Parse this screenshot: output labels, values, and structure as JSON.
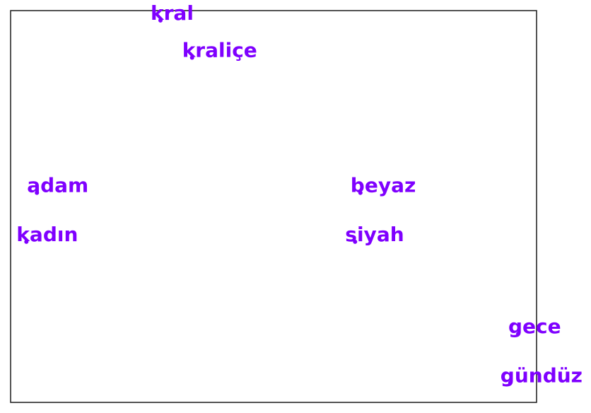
{
  "chart_data": {
    "type": "scatter",
    "title": "",
    "xlabel": "",
    "ylabel": "",
    "grid": false,
    "legend": "none",
    "xlim": [
      -1.0,
      1.0
    ],
    "ylim": [
      -1.0,
      1.0
    ],
    "axes_visible": false,
    "marker_color": "#7f00ff",
    "label_color": "#7f00ff",
    "points": [
      {
        "label": "kral",
        "x": -0.43,
        "y": 0.95
      },
      {
        "label": "kraliçe",
        "x": -0.31,
        "y": 0.76
      },
      {
        "label": "adam",
        "x": -0.9,
        "y": 0.07
      },
      {
        "label": "kadın",
        "x": -0.94,
        "y": -0.18
      },
      {
        "label": "beyaz",
        "x": 0.33,
        "y": 0.07
      },
      {
        "label": "siyah",
        "x": 0.31,
        "y": -0.18
      },
      {
        "label": "gece",
        "x": 0.93,
        "y": -0.65
      },
      {
        "label": "gündüz",
        "x": 0.9,
        "y": -0.9
      }
    ]
  }
}
